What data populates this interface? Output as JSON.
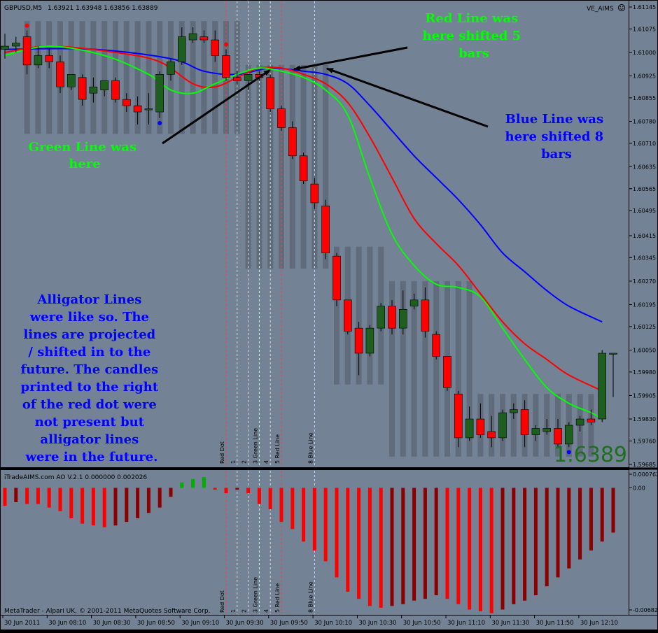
{
  "colors": {
    "background": "#738294",
    "frame": "#000000",
    "grid_divider": "#000000",
    "bull_candle": "#1e5e1e",
    "bear_candle": "#ff0000",
    "shadow_band": "#5d6877",
    "lip_line": "#00ff00",
    "teeth_line": "#ff0000",
    "jaw_line": "#0000ff",
    "ao_up": "#00b000",
    "ao_down_bright": "#ff0000",
    "ao_down_dark": "#8b0000",
    "annotation_green": "#00ff00",
    "annotation_blue": "#0000ff",
    "price_big": "#1e6e1e",
    "marker_red": "#ff0000",
    "marker_blue": "#0000ff"
  },
  "header": {
    "symbol": "GBPUSD,M5",
    "ohlc": "1.63921 1.63948 1.63856 1.63889",
    "expert": "VE_AIMS",
    "expert_icon": "smiley-icon"
  },
  "indicator_header": "iTradeAIMS.com AO V.2.1 0.000000 0.002026",
  "footer_copyright": "MetaTrader - Alpari UK, © 2001-2011 MetaQuotes Software Corp.",
  "big_price": "1.6389",
  "annotations": {
    "red_line": "Red Line was here shifted 5 bars",
    "blue_line": "Blue Line was here shifted 8 bars",
    "green_line": "Green Line was here",
    "alligator": "Alligator Lines were like so. The lines are projected / shifted in to the future. The candles printed to the right of the red dot were not present but alligator lines were in the future."
  },
  "vline_labels": [
    "Red Dot",
    "1",
    "2",
    "3 Green Line",
    "4",
    "5 Red Line",
    "8 Blue Line"
  ],
  "price_axis": [
    "1.61145",
    "1.61075",
    "1.61000",
    "1.60925",
    "1.60855",
    "1.60780",
    "1.60710",
    "1.60635",
    "1.60565",
    "1.60495",
    "1.60415",
    "1.60345",
    "1.60270",
    "1.60195",
    "1.60125",
    "1.60050",
    "1.59980",
    "1.59905",
    "1.59830",
    "1.59760",
    "1.59685"
  ],
  "ao_axis": [
    "0.000762",
    "0.00",
    "-0.00682"
  ],
  "time_axis": [
    "30 Jun 2011",
    "30 Jun 08:10",
    "30 Jun 08:30",
    "30 Jun 08:50",
    "30 Jun 09:10",
    "30 Jun 09:30",
    "30 Jun 09:50",
    "30 Jun 10:10",
    "30 Jun 10:30",
    "30 Jun 10:50",
    "30 Jun 11:10",
    "30 Jun 11:30",
    "30 Jun 11:50",
    "30 Jun 12:10"
  ],
  "chart_data": {
    "type": "candlestick",
    "symbol": "GBPUSD",
    "timeframe": "M5",
    "ylim": [
      1.59685,
      1.6117
    ],
    "candles": [
      {
        "o": 1.6101,
        "h": 1.6106,
        "l": 1.6098,
        "c": 1.6102
      },
      {
        "o": 1.6102,
        "h": 1.6105,
        "l": 1.61,
        "c": 1.6103
      },
      {
        "o": 1.6105,
        "h": 1.6107,
        "l": 1.6093,
        "c": 1.6096
      },
      {
        "o": 1.6096,
        "h": 1.6102,
        "l": 1.6095,
        "c": 1.6099
      },
      {
        "o": 1.6099,
        "h": 1.6101,
        "l": 1.6095,
        "c": 1.6097
      },
      {
        "o": 1.6097,
        "h": 1.6099,
        "l": 1.6087,
        "c": 1.6089
      },
      {
        "o": 1.6089,
        "h": 1.6093,
        "l": 1.6088,
        "c": 1.6093
      },
      {
        "o": 1.6092,
        "h": 1.6093,
        "l": 1.6083,
        "c": 1.6085
      },
      {
        "o": 1.6087,
        "h": 1.6092,
        "l": 1.6084,
        "c": 1.6089
      },
      {
        "o": 1.6088,
        "h": 1.6091,
        "l": 1.6086,
        "c": 1.6091
      },
      {
        "o": 1.6091,
        "h": 1.6092,
        "l": 1.6084,
        "c": 1.6085
      },
      {
        "o": 1.6085,
        "h": 1.6087,
        "l": 1.6081,
        "c": 1.6083
      },
      {
        "o": 1.6083,
        "h": 1.6086,
        "l": 1.6077,
        "c": 1.6081
      },
      {
        "o": 1.6082,
        "h": 1.6087,
        "l": 1.6077,
        "c": 1.6082
      },
      {
        "o": 1.6081,
        "h": 1.6094,
        "l": 1.6079,
        "c": 1.6093
      },
      {
        "o": 1.6093,
        "h": 1.6098,
        "l": 1.6091,
        "c": 1.6097
      },
      {
        "o": 1.6097,
        "h": 1.6108,
        "l": 1.6096,
        "c": 1.6105
      },
      {
        "o": 1.6104,
        "h": 1.6108,
        "l": 1.6103,
        "c": 1.6106
      },
      {
        "o": 1.6105,
        "h": 1.6107,
        "l": 1.6103,
        "c": 1.6104
      },
      {
        "o": 1.6104,
        "h": 1.6107,
        "l": 1.6097,
        "c": 1.6099
      },
      {
        "o": 1.6099,
        "h": 1.6101,
        "l": 1.6091,
        "c": 1.6092
      },
      {
        "o": 1.6092,
        "h": 1.6094,
        "l": 1.609,
        "c": 1.6091
      },
      {
        "o": 1.6091,
        "h": 1.6093,
        "l": 1.6088,
        "c": 1.6093
      },
      {
        "o": 1.6093,
        "h": 1.6094,
        "l": 1.6091,
        "c": 1.6092
      },
      {
        "o": 1.6092,
        "h": 1.6093,
        "l": 1.6081,
        "c": 1.6082
      },
      {
        "o": 1.6082,
        "h": 1.6083,
        "l": 1.6075,
        "c": 1.6076
      },
      {
        "o": 1.6076,
        "h": 1.6078,
        "l": 1.6066,
        "c": 1.6067
      },
      {
        "o": 1.6067,
        "h": 1.6068,
        "l": 1.6058,
        "c": 1.6059
      },
      {
        "o": 1.6058,
        "h": 1.606,
        "l": 1.605,
        "c": 1.6052
      },
      {
        "o": 1.6051,
        "h": 1.6053,
        "l": 1.6034,
        "c": 1.6036
      },
      {
        "o": 1.6035,
        "h": 1.6036,
        "l": 1.6019,
        "c": 1.6021
      },
      {
        "o": 1.6021,
        "h": 1.6021,
        "l": 1.601,
        "c": 1.6011
      },
      {
        "o": 1.6012,
        "h": 1.6014,
        "l": 1.5997,
        "c": 1.6004
      },
      {
        "o": 1.6004,
        "h": 1.6013,
        "l": 1.6003,
        "c": 1.6012
      },
      {
        "o": 1.6012,
        "h": 1.602,
        "l": 1.6011,
        "c": 1.6019
      },
      {
        "o": 1.6019,
        "h": 1.6021,
        "l": 1.601,
        "c": 1.6012
      },
      {
        "o": 1.6012,
        "h": 1.6024,
        "l": 1.601,
        "c": 1.6018
      },
      {
        "o": 1.6019,
        "h": 1.6023,
        "l": 1.6018,
        "c": 1.6021
      },
      {
        "o": 1.6021,
        "h": 1.6025,
        "l": 1.6009,
        "c": 1.6011
      },
      {
        "o": 1.601,
        "h": 1.6011,
        "l": 1.6002,
        "c": 1.6003
      },
      {
        "o": 1.6003,
        "h": 1.6003,
        "l": 1.5992,
        "c": 1.5993
      },
      {
        "o": 1.5991,
        "h": 1.5992,
        "l": 1.5974,
        "c": 1.5977
      },
      {
        "o": 1.5977,
        "h": 1.5987,
        "l": 1.5976,
        "c": 1.5983
      },
      {
        "o": 1.5983,
        "h": 1.5988,
        "l": 1.5977,
        "c": 1.5978
      },
      {
        "o": 1.5979,
        "h": 1.5984,
        "l": 1.5974,
        "c": 1.5977
      },
      {
        "o": 1.5977,
        "h": 1.5986,
        "l": 1.5976,
        "c": 1.5985
      },
      {
        "o": 1.5985,
        "h": 1.5988,
        "l": 1.5983,
        "c": 1.5986
      },
      {
        "o": 1.5986,
        "h": 1.5989,
        "l": 1.5974,
        "c": 1.5978
      },
      {
        "o": 1.5978,
        "h": 1.5981,
        "l": 1.5976,
        "c": 1.598
      },
      {
        "o": 1.5979,
        "h": 1.5983,
        "l": 1.5978,
        "c": 1.598
      },
      {
        "o": 1.598,
        "h": 1.5983,
        "l": 1.5974,
        "c": 1.5975
      },
      {
        "o": 1.5975,
        "h": 1.5982,
        "l": 1.5974,
        "c": 1.5981
      },
      {
        "o": 1.5981,
        "h": 1.5984,
        "l": 1.5979,
        "c": 1.5983
      },
      {
        "o": 1.5983,
        "h": 1.5986,
        "l": 1.5981,
        "c": 1.5982
      },
      {
        "o": 1.5983,
        "h": 1.6005,
        "l": 1.5982,
        "c": 1.6004
      },
      {
        "o": 1.6004,
        "h": 1.6004,
        "l": 1.599,
        "c": 1.6004
      }
    ],
    "alligator": {
      "lips": {
        "name": "Green Line",
        "points": [
          [
            0,
            1.6099
          ],
          [
            4,
            1.6102
          ],
          [
            9,
            1.6099
          ],
          [
            13,
            1.6093
          ],
          [
            15,
            1.6088
          ],
          [
            17,
            1.6087
          ],
          [
            19,
            1.609
          ],
          [
            21,
            1.6093
          ],
          [
            23,
            1.6095
          ],
          [
            25,
            1.6094
          ],
          [
            27,
            1.6092
          ],
          [
            29,
            1.6088
          ],
          [
            31,
            1.608
          ],
          [
            33,
            1.606
          ],
          [
            35,
            1.6042
          ],
          [
            37,
            1.6032
          ],
          [
            39,
            1.6026
          ],
          [
            41,
            1.6025
          ],
          [
            43,
            1.6022
          ],
          [
            45,
            1.6012
          ],
          [
            47,
            1.6002
          ],
          [
            49,
            1.5993
          ],
          [
            51,
            1.5988
          ],
          [
            53,
            1.5985
          ],
          [
            54,
            1.5983
          ]
        ]
      },
      "teeth": {
        "name": "Red Line",
        "points": [
          [
            0,
            1.61
          ],
          [
            4,
            1.6102
          ],
          [
            10,
            1.61
          ],
          [
            14,
            1.6097
          ],
          [
            17,
            1.609
          ],
          [
            19,
            1.6089
          ],
          [
            21,
            1.6092
          ],
          [
            23,
            1.6095
          ],
          [
            25,
            1.6095
          ],
          [
            27,
            1.6093
          ],
          [
            29,
            1.609
          ],
          [
            31,
            1.6084
          ],
          [
            33,
            1.6073
          ],
          [
            35,
            1.606
          ],
          [
            37,
            1.6047
          ],
          [
            39,
            1.6039
          ],
          [
            41,
            1.6032
          ],
          [
            43,
            1.6023
          ],
          [
            45,
            1.6014
          ],
          [
            47,
            1.6007
          ],
          [
            49,
            1.6002
          ],
          [
            51,
            1.5997
          ],
          [
            54,
            1.5992
          ]
        ]
      },
      "jaw": {
        "name": "Blue Line",
        "points": [
          [
            0,
            1.6101
          ],
          [
            8,
            1.6101
          ],
          [
            15,
            1.6098
          ],
          [
            18,
            1.6094
          ],
          [
            21,
            1.6093
          ],
          [
            24,
            1.6095
          ],
          [
            27,
            1.6094
          ],
          [
            29,
            1.6093
          ],
          [
            31,
            1.609
          ],
          [
            33,
            1.6083
          ],
          [
            35,
            1.6075
          ],
          [
            37,
            1.6067
          ],
          [
            39,
            1.606
          ],
          [
            41,
            1.6053
          ],
          [
            43,
            1.6045
          ],
          [
            45,
            1.6036
          ],
          [
            47,
            1.603
          ],
          [
            49,
            1.6024
          ],
          [
            51,
            1.6019
          ],
          [
            54,
            1.6014
          ]
        ]
      }
    },
    "fractal_up": [
      2,
      20
    ],
    "fractal_down": [
      14,
      51
    ],
    "vertical_lines": [
      {
        "label": "Red Dot",
        "bar": 20
      },
      {
        "label": "1",
        "bar": 21
      },
      {
        "label": "2",
        "bar": 22
      },
      {
        "label": "3 Green Line",
        "bar": 23
      },
      {
        "label": "4",
        "bar": 24
      },
      {
        "label": "5 Red Line",
        "bar": 25
      },
      {
        "label": "8 Blue Line",
        "bar": 28
      }
    ],
    "shadow_zones": [
      [
        2,
        21
      ],
      [
        22,
        29
      ],
      [
        30,
        34
      ],
      [
        35,
        42
      ],
      [
        43,
        53
      ]
    ],
    "ao": {
      "ylim": [
        -0.00682,
        0.000762
      ],
      "values": [
        -0.001,
        -0.0008,
        -0.0009,
        -0.0009,
        -0.0011,
        -0.0013,
        -0.0017,
        -0.002,
        -0.0021,
        -0.0022,
        -0.0021,
        -0.0019,
        -0.0017,
        -0.0014,
        -0.0011,
        -0.0005,
        0.0003,
        0.0005,
        0.0006,
        -0.0001,
        -0.0003,
        -0.0001,
        -0.0003,
        -0.0009,
        -0.0012,
        -0.0019,
        -0.0023,
        -0.003,
        -0.0035,
        -0.0041,
        -0.005,
        -0.0058,
        -0.0062,
        -0.0066,
        -0.0067,
        -0.0066,
        -0.0065,
        -0.0063,
        -0.0062,
        -0.006,
        -0.0062,
        -0.0065,
        -0.0068,
        -0.0069,
        -0.007,
        -0.0068,
        -0.0065,
        -0.0063,
        -0.006,
        -0.0055,
        -0.005,
        -0.0045,
        -0.004,
        -0.0035,
        -0.003,
        -0.0025
      ]
    }
  }
}
